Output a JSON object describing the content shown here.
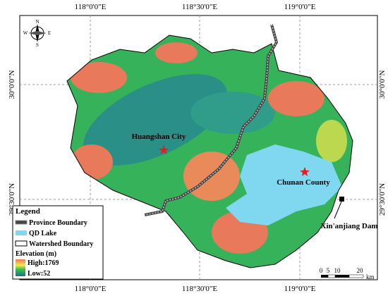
{
  "coordinates": {
    "top": [
      "118°0'0\"E",
      "118°30'0\"E",
      "119°0'0\"E"
    ],
    "bottom": [
      "118°0'0\"E",
      "118°30'0\"E",
      "119°0'0\"E"
    ],
    "left": [
      "30°0'0\"N",
      "29°30'0\"N"
    ],
    "right": [
      "30°0'0\"N",
      "29°30'0\"N"
    ]
  },
  "places": [
    {
      "label": "Huangshan City"
    },
    {
      "label": "Chunan County"
    },
    {
      "label": "Xin'anjiang Dam"
    }
  ],
  "compass": {
    "north": "N",
    "south": "S",
    "east": "E",
    "west": "W"
  },
  "legend": {
    "title": "Legend",
    "items": [
      "Province Boundary",
      "QD Lake",
      "Watershed Boundary"
    ],
    "elevation_title": "Elevation (m)",
    "high": "High:1769",
    "low": "Low:52"
  },
  "scale_bar": {
    "ticks": [
      "0",
      "5",
      "10",
      "20"
    ],
    "unit": "km"
  }
}
